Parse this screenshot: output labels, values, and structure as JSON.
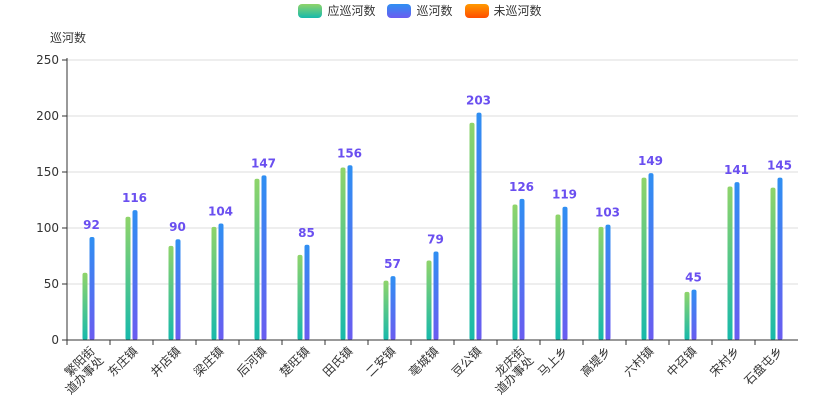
{
  "chart_data": {
    "type": "bar",
    "ylabel": "巡河数",
    "ylim": [
      0,
      250
    ],
    "yticks": [
      0,
      50,
      100,
      150,
      200,
      250
    ],
    "grid": true,
    "legend_placement": "top-center",
    "categories": [
      "繁阳街道办事处",
      "东庄镇",
      "井店镇",
      "梁庄镇",
      "后河镇",
      "楚旺镇",
      "田氏镇",
      "二安镇",
      "亳城镇",
      "豆公镇",
      "龙庆街道办事处",
      "马上乡",
      "高堤乡",
      "六村镇",
      "中召镇",
      "宋村乡",
      "石盘屯乡"
    ],
    "category_lines": [
      [
        "繁阳街",
        "道办事处"
      ],
      [
        "东庄镇"
      ],
      [
        "井店镇"
      ],
      [
        "梁庄镇"
      ],
      [
        "后河镇"
      ],
      [
        "楚旺镇"
      ],
      [
        "田氏镇"
      ],
      [
        "二安镇"
      ],
      [
        "亳城镇"
      ],
      [
        "豆公镇"
      ],
      [
        "龙庆街",
        "道办事处"
      ],
      [
        "马上乡"
      ],
      [
        "高堤乡"
      ],
      [
        "六村镇"
      ],
      [
        "中召镇"
      ],
      [
        "宋村乡"
      ],
      [
        "石盘屯乡"
      ]
    ],
    "series": [
      {
        "name": "应巡河数",
        "values": [
          60,
          110,
          84,
          101,
          144,
          76,
          154,
          53,
          71,
          194,
          121,
          112,
          101,
          145,
          43,
          137,
          136
        ]
      },
      {
        "name": "巡河数",
        "values": [
          92,
          116,
          90,
          104,
          147,
          85,
          156,
          57,
          79,
          203,
          126,
          119,
          103,
          149,
          45,
          141,
          145
        ],
        "labels_shown": true
      },
      {
        "name": "未巡河数",
        "values": [
          0,
          0,
          0,
          0,
          0,
          0,
          0,
          0,
          0,
          0,
          0,
          0,
          0,
          0,
          0,
          0,
          0
        ]
      }
    ]
  },
  "legend": [
    {
      "name": "应巡河数",
      "color_top": "#8fd46a",
      "color_bottom": "#17b9ab"
    },
    {
      "name": "巡河数",
      "color_top": "#2f8ff2",
      "color_bottom": "#6a5cf0"
    },
    {
      "name": "未巡河数",
      "color_top": "#ff9a00",
      "color_bottom": "#ff4d00"
    }
  ],
  "colors": {
    "label": "#6a4ff0",
    "axis": "#333333",
    "grid": "#dddddd"
  }
}
